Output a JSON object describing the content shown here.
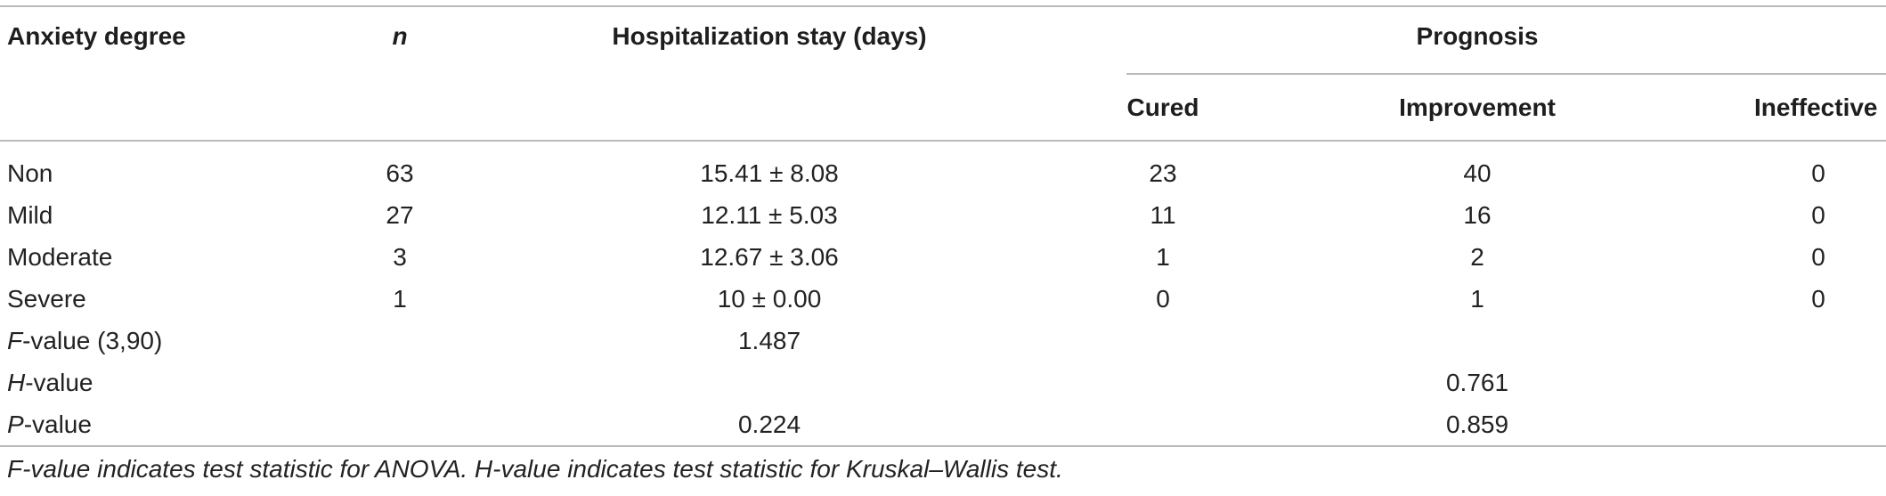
{
  "table": {
    "headers": {
      "anxiety_degree": "Anxiety degree",
      "n": "n",
      "hospitalization_stay": "Hospitalization stay (days)",
      "prognosis": "Prognosis",
      "cured": "Cured",
      "improvement": "Improvement",
      "ineffective": "Ineffective"
    },
    "rows": [
      {
        "degree": "Non",
        "n": "63",
        "stay": "15.41 ± 8.08",
        "cured": "23",
        "improvement": "40",
        "ineffective": "0"
      },
      {
        "degree": "Mild",
        "n": "27",
        "stay": "12.11 ± 5.03",
        "cured": "11",
        "improvement": "16",
        "ineffective": "0"
      },
      {
        "degree": "Moderate",
        "n": "3",
        "stay": "12.67 ± 3.06",
        "cured": "1",
        "improvement": "2",
        "ineffective": "0"
      },
      {
        "degree": "Severe",
        "n": "1",
        "stay": "10 ± 0.00",
        "cured": "0",
        "improvement": "1",
        "ineffective": "0"
      }
    ],
    "stats": {
      "f_label_italic": "F",
      "f_label_rest": "-value (3,90)",
      "f_stay": "1.487",
      "h_label_italic": "H",
      "h_label_rest": "-value",
      "h_improvement": "0.761",
      "p_label_italic": "P",
      "p_label_rest": "-value",
      "p_stay": "0.224",
      "p_improvement": "0.859"
    }
  },
  "footnote": "F-value indicates test statistic for ANOVA. H-value indicates test statistic for Kruskal–Wallis test."
}
